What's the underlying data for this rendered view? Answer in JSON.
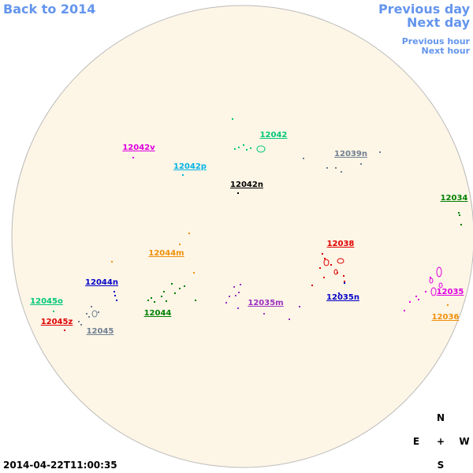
{
  "navigation": {
    "back": "Back to 2014",
    "previous_day": "Previous day",
    "next_day": "Next day",
    "previous_hour": "Previous hour",
    "next_hour": "Next hour"
  },
  "timestamp": "2014-04-22T11:00:35",
  "compass": {
    "north": "N",
    "east": "E",
    "center": "+",
    "west": "W",
    "south": "S"
  },
  "regions": [
    {
      "label": "12042",
      "color": "#00c878"
    },
    {
      "label": "12042v",
      "color": "#e000e0"
    },
    {
      "label": "12039n",
      "color": "#708090"
    },
    {
      "label": "12042p",
      "color": "#00b4e6"
    },
    {
      "label": "12042n",
      "color": "#000000"
    },
    {
      "label": "12034",
      "color": "#008000"
    },
    {
      "label": "12038",
      "color": "#e00000"
    },
    {
      "label": "12044m",
      "color": "#f0900a"
    },
    {
      "label": "12044n",
      "color": "#0000c8"
    },
    {
      "label": "12035",
      "color": "#e000e0"
    },
    {
      "label": "12035n",
      "color": "#0000c8"
    },
    {
      "label": "12035m",
      "color": "#9a30c0"
    },
    {
      "label": "12045o",
      "color": "#00c878"
    },
    {
      "label": "12044",
      "color": "#008000"
    },
    {
      "label": "12036",
      "color": "#f0900a"
    },
    {
      "label": "12045z",
      "color": "#e00000"
    },
    {
      "label": "12045",
      "color": "#708090"
    }
  ]
}
